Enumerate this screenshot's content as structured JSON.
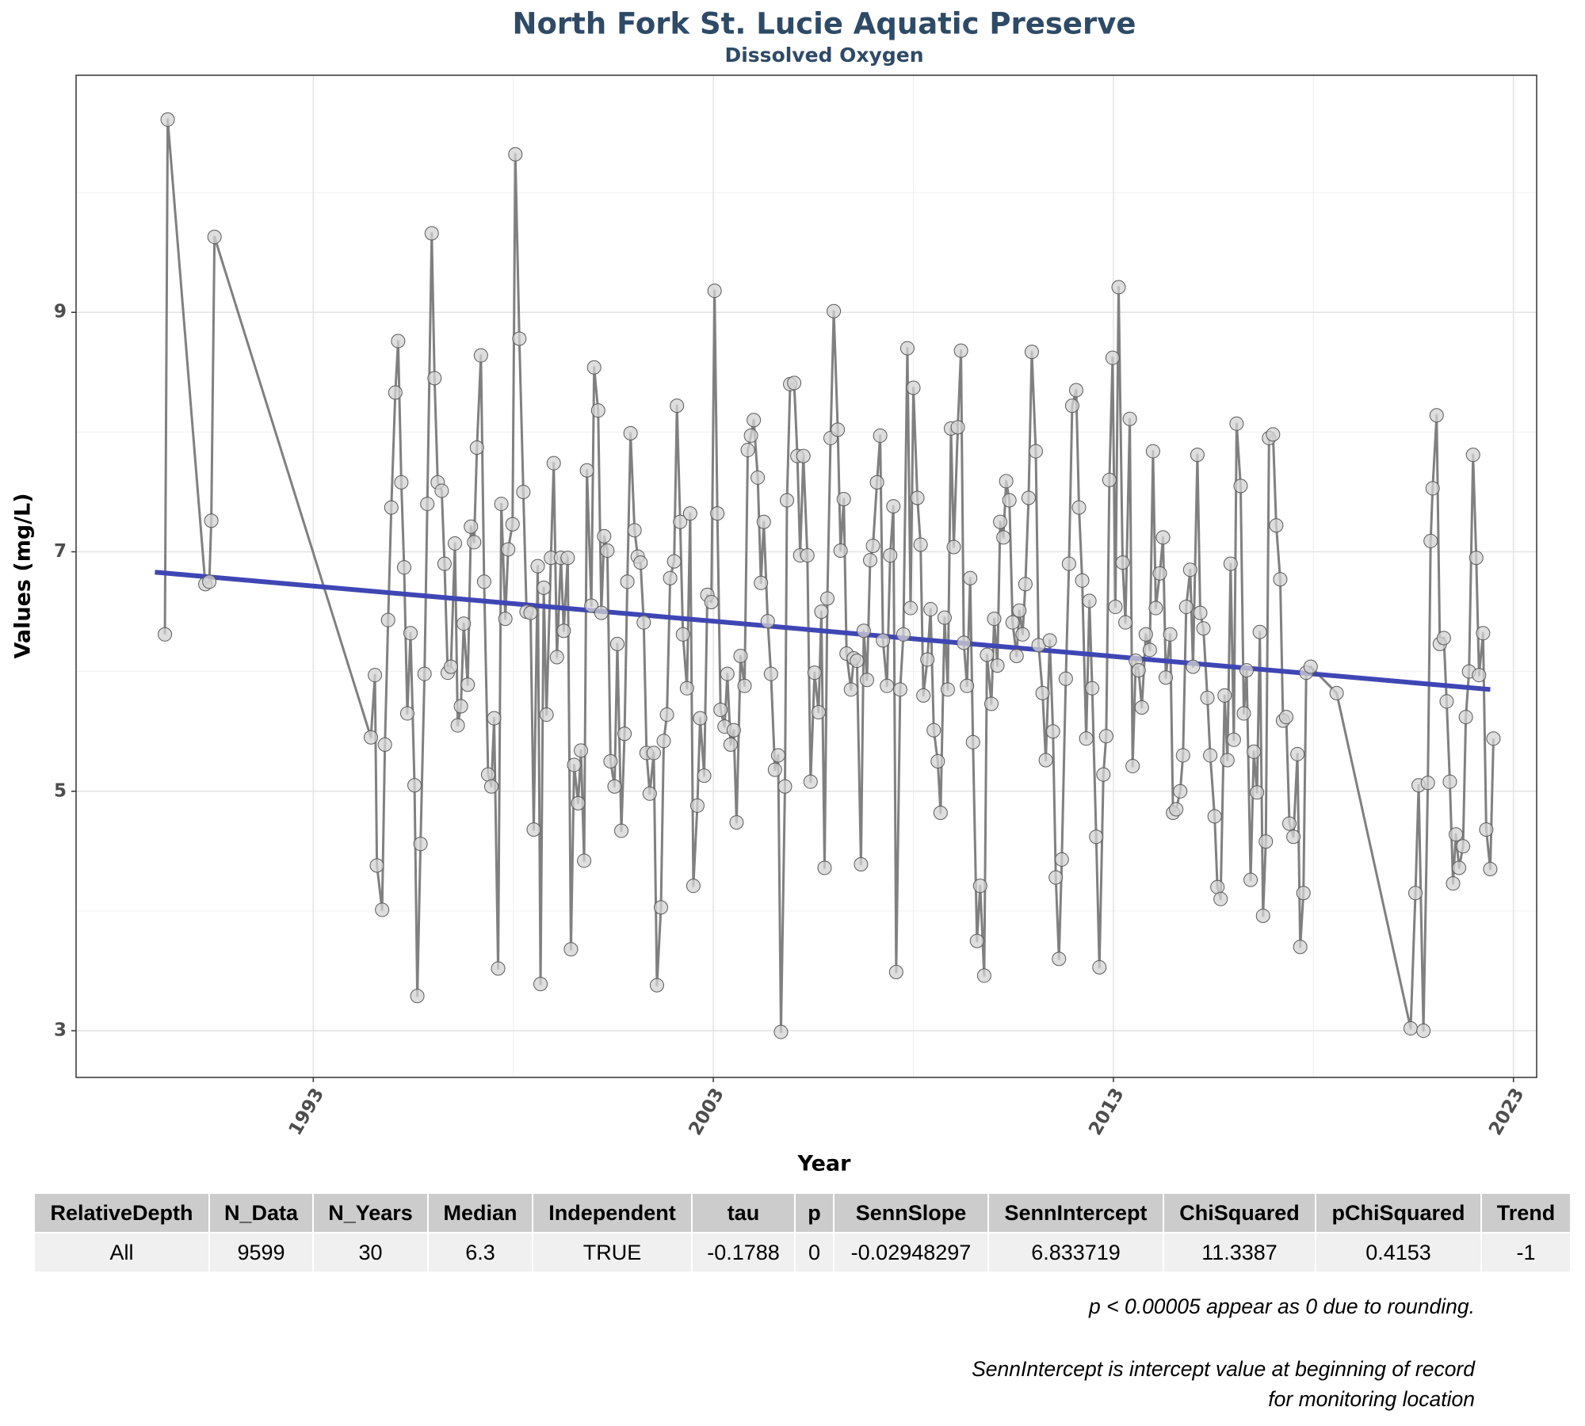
{
  "chart_data": {
    "type": "line",
    "title": "North Fork St. Lucie Aquatic Preserve",
    "subtitle": "Dissolved Oxygen",
    "x_label": "Year",
    "y_label": "Values (mg/L)",
    "xlim": [
      1987.07,
      2023.58
    ],
    "ylim": [
      2.61,
      10.98
    ],
    "xticks": [
      1993,
      2003,
      2013,
      2023
    ],
    "yticks": [
      3,
      5,
      7,
      9
    ],
    "x_minor_gridlines": [
      1998,
      2008,
      2018
    ],
    "y_minor_gridlines": [
      4,
      6,
      8,
      10
    ],
    "grid": true,
    "color": "#808080",
    "marker_color": "#d3d3d3",
    "x": [
      1989.29,
      1989.36,
      1990.3,
      1990.4,
      1990.45,
      1990.53,
      1994.44,
      1994.54,
      1994.59,
      1994.72,
      1994.79,
      1994.87,
      1994.95,
      1995.05,
      1995.12,
      1995.2,
      1995.27,
      1995.35,
      1995.43,
      1995.53,
      1995.6,
      1995.68,
      1995.78,
      1995.85,
      1995.96,
      1996.03,
      1996.11,
      1996.21,
      1996.28,
      1996.36,
      1996.44,
      1996.54,
      1996.61,
      1996.69,
      1996.76,
      1996.86,
      1996.94,
      1997.02,
      1997.09,
      1997.19,
      1997.27,
      1997.37,
      1997.45,
      1997.52,
      1997.62,
      1997.7,
      1997.8,
      1997.87,
      1997.98,
      1998.05,
      1998.15,
      1998.25,
      1998.33,
      1998.43,
      1998.51,
      1998.61,
      1998.68,
      1998.76,
      1998.83,
      1998.94,
      1999.01,
      1999.09,
      1999.19,
      1999.26,
      1999.36,
      1999.44,
      1999.52,
      1999.62,
      1999.69,
      1999.77,
      1999.84,
      1999.95,
      2000.02,
      2000.12,
      2000.2,
      2000.27,
      2000.35,
      2000.43,
      2000.53,
      2000.6,
      2000.7,
      2000.78,
      2000.85,
      2000.93,
      2001.03,
      2001.11,
      2001.18,
      2001.26,
      2001.33,
      2001.41,
      2001.51,
      2001.59,
      2001.69,
      2001.76,
      2001.84,
      2001.92,
      2002.02,
      2002.09,
      2002.17,
      2002.24,
      2002.34,
      2002.42,
      2002.5,
      2002.6,
      2002.67,
      2002.77,
      2002.85,
      2002.95,
      2003.03,
      2003.1,
      2003.18,
      2003.28,
      2003.35,
      2003.43,
      2003.51,
      2003.58,
      2003.68,
      2003.78,
      2003.86,
      2003.94,
      2004.01,
      2004.11,
      2004.19,
      2004.26,
      2004.36,
      2004.44,
      2004.54,
      2004.62,
      2004.69,
      2004.79,
      2004.84,
      2004.92,
      2005.02,
      2005.1,
      2005.17,
      2005.25,
      2005.35,
      2005.43,
      2005.53,
      2005.63,
      2005.7,
      2005.78,
      2005.85,
      2005.93,
      2006.01,
      2006.11,
      2006.18,
      2006.26,
      2006.33,
      2006.44,
      2006.51,
      2006.59,
      2006.69,
      2006.76,
      2006.84,
      2006.92,
      2006.99,
      2007.09,
      2007.17,
      2007.24,
      2007.34,
      2007.42,
      2007.5,
      2007.57,
      2007.67,
      2007.75,
      2007.85,
      2007.93,
      2008.0,
      2008.1,
      2008.18,
      2008.25,
      2008.35,
      2008.43,
      2008.51,
      2008.61,
      2008.68,
      2008.78,
      2008.86,
      2008.94,
      2009.01,
      2009.11,
      2009.19,
      2009.26,
      2009.34,
      2009.42,
      2009.49,
      2009.59,
      2009.67,
      2009.77,
      2009.84,
      2009.95,
      2010.02,
      2010.1,
      2010.17,
      2010.25,
      2010.32,
      2010.4,
      2010.48,
      2010.58,
      2010.65,
      2010.73,
      2010.8,
      2010.88,
      2010.96,
      2011.06,
      2011.13,
      2011.23,
      2011.31,
      2011.41,
      2011.49,
      2011.56,
      2011.64,
      2011.71,
      2011.81,
      2011.89,
      2011.97,
      2012.07,
      2012.14,
      2012.22,
      2012.32,
      2012.4,
      2012.47,
      2012.57,
      2012.65,
      2012.75,
      2012.82,
      2012.9,
      2012.98,
      2013.05,
      2013.13,
      2013.23,
      2013.3,
      2013.41,
      2013.48,
      2013.56,
      2013.63,
      2013.71,
      2013.81,
      2013.91,
      2013.99,
      2014.06,
      2014.16,
      2014.24,
      2014.31,
      2014.42,
      2014.49,
      2014.57,
      2014.67,
      2014.74,
      2014.82,
      2014.92,
      2014.99,
      2015.1,
      2015.17,
      2015.25,
      2015.35,
      2015.42,
      2015.53,
      2015.6,
      2015.68,
      2015.78,
      2015.85,
      2015.93,
      2016.01,
      2016.08,
      2016.18,
      2016.26,
      2016.33,
      2016.43,
      2016.51,
      2016.59,
      2016.66,
      2016.74,
      2016.81,
      2016.89,
      2016.99,
      2017.07,
      2017.17,
      2017.24,
      2017.32,
      2017.4,
      2017.5,
      2017.6,
      2017.67,
      2017.75,
      2017.82,
      2017.93,
      2018.58,
      2020.43,
      2020.55,
      2020.63,
      2020.75,
      2020.86,
      2020.93,
      2020.98,
      2021.08,
      2021.16,
      2021.26,
      2021.33,
      2021.41,
      2021.49,
      2021.56,
      2021.64,
      2021.74,
      2021.81,
      2021.89,
      2021.99,
      2022.07,
      2022.14,
      2022.24,
      2022.32,
      2022.42,
      2022.5
    ],
    "values": [
      6.31,
      10.61,
      6.73,
      6.75,
      7.26,
      9.63,
      5.45,
      5.97,
      4.38,
      4.01,
      5.39,
      6.43,
      7.37,
      8.33,
      8.76,
      7.58,
      6.87,
      5.65,
      6.32,
      5.05,
      3.29,
      4.56,
      5.98,
      7.4,
      9.66,
      8.45,
      7.58,
      7.51,
      6.9,
      5.99,
      6.04,
      7.07,
      5.55,
      5.71,
      6.4,
      5.89,
      7.21,
      7.08,
      7.87,
      8.64,
      6.75,
      5.14,
      5.04,
      5.61,
      3.52,
      7.4,
      6.44,
      7.02,
      7.23,
      10.32,
      8.78,
      7.5,
      6.5,
      6.49,
      4.68,
      6.88,
      3.39,
      6.7,
      5.64,
      6.95,
      7.74,
      6.12,
      6.95,
      6.34,
      6.95,
      3.68,
      5.22,
      4.9,
      5.34,
      4.42,
      7.68,
      6.55,
      8.54,
      8.18,
      6.49,
      7.13,
      7.01,
      5.25,
      5.04,
      6.23,
      4.67,
      5.48,
      6.75,
      7.99,
      7.18,
      6.96,
      6.91,
      6.41,
      5.32,
      4.98,
      5.32,
      3.38,
      4.03,
      5.42,
      5.64,
      6.78,
      6.92,
      8.22,
      7.25,
      6.31,
      5.86,
      7.32,
      4.21,
      4.88,
      5.61,
      5.13,
      6.64,
      6.58,
      9.18,
      7.32,
      5.68,
      5.54,
      5.98,
      5.39,
      5.51,
      4.74,
      6.13,
      5.88,
      7.85,
      7.97,
      8.1,
      7.62,
      6.74,
      7.25,
      6.42,
      5.98,
      5.18,
      5.3,
      2.99,
      5.04,
      7.43,
      8.4,
      8.41,
      7.8,
      6.97,
      7.8,
      6.97,
      5.08,
      5.99,
      5.66,
      6.5,
      4.36,
      6.61,
      7.95,
      9.01,
      8.02,
      7.01,
      7.44,
      6.15,
      5.85,
      6.11,
      6.09,
      4.39,
      6.34,
      5.93,
      6.93,
      7.05,
      7.58,
      7.97,
      6.26,
      5.88,
      6.97,
      7.38,
      3.49,
      5.85,
      6.31,
      8.7,
      6.53,
      8.37,
      7.45,
      7.06,
      5.8,
      6.1,
      6.52,
      5.51,
      5.25,
      4.82,
      6.45,
      5.85,
      8.03,
      7.04,
      8.04,
      8.68,
      6.24,
      5.88,
      6.78,
      5.41,
      3.75,
      4.21,
      3.46,
      6.14,
      5.73,
      6.44,
      6.05,
      7.25,
      7.12,
      7.59,
      7.43,
      6.41,
      6.13,
      6.51,
      6.31,
      6.73,
      7.45,
      8.67,
      7.84,
      6.22,
      5.82,
      5.26,
      6.26,
      5.5,
      4.28,
      3.6,
      4.43,
      5.94,
      6.9,
      8.22,
      8.35,
      7.37,
      6.76,
      5.44,
      6.59,
      5.86,
      4.62,
      3.53,
      5.14,
      5.46,
      7.6,
      8.62,
      6.54,
      9.21,
      6.91,
      6.41,
      8.11,
      5.21,
      6.09,
      6.01,
      5.7,
      6.31,
      6.18,
      7.84,
      6.53,
      6.82,
      7.12,
      5.95,
      6.31,
      4.82,
      4.85,
      5.0,
      5.3,
      6.54,
      6.85,
      6.04,
      7.81,
      6.49,
      6.36,
      5.78,
      5.3,
      4.79,
      4.2,
      4.1,
      5.8,
      5.26,
      6.9,
      5.43,
      8.07,
      7.55,
      5.65,
      6.01,
      4.26,
      5.33,
      4.99,
      6.33,
      3.96,
      4.58,
      7.95,
      7.98,
      7.22,
      6.77,
      5.59,
      5.62,
      4.73,
      4.62,
      5.31,
      3.7,
      4.15,
      5.99,
      6.04,
      5.82,
      3.02,
      4.15,
      5.05,
      3.0,
      5.07,
      7.09,
      7.53,
      8.14,
      6.23,
      6.28,
      5.75,
      5.08,
      4.23,
      4.64,
      4.36,
      4.54,
      5.62,
      6.0,
      7.81,
      6.95,
      5.97,
      6.32,
      4.68,
      4.35,
      5.44
    ],
    "trend": {
      "x": [
        1989.04,
        2022.42
      ],
      "values": [
        6.83,
        5.85
      ],
      "color": "#3f46b4"
    }
  },
  "table": {
    "columns": [
      "RelativeDepth",
      "N_Data",
      "N_Years",
      "Median",
      "Independent",
      "tau",
      "p",
      "SennSlope",
      "SennIntercept",
      "ChiSquared",
      "pChiSquared",
      "Trend"
    ],
    "rows": [
      [
        "All",
        "9599",
        "30",
        "6.3",
        "TRUE",
        "-0.1788",
        "0",
        "-0.02948297",
        "6.833719",
        "11.3387",
        "0.4153",
        "-1"
      ]
    ]
  },
  "notes": [
    "p < 0.00005 appear as 0 due to rounding.",
    "SennIntercept is intercept value at beginning of record for monitoring location"
  ]
}
